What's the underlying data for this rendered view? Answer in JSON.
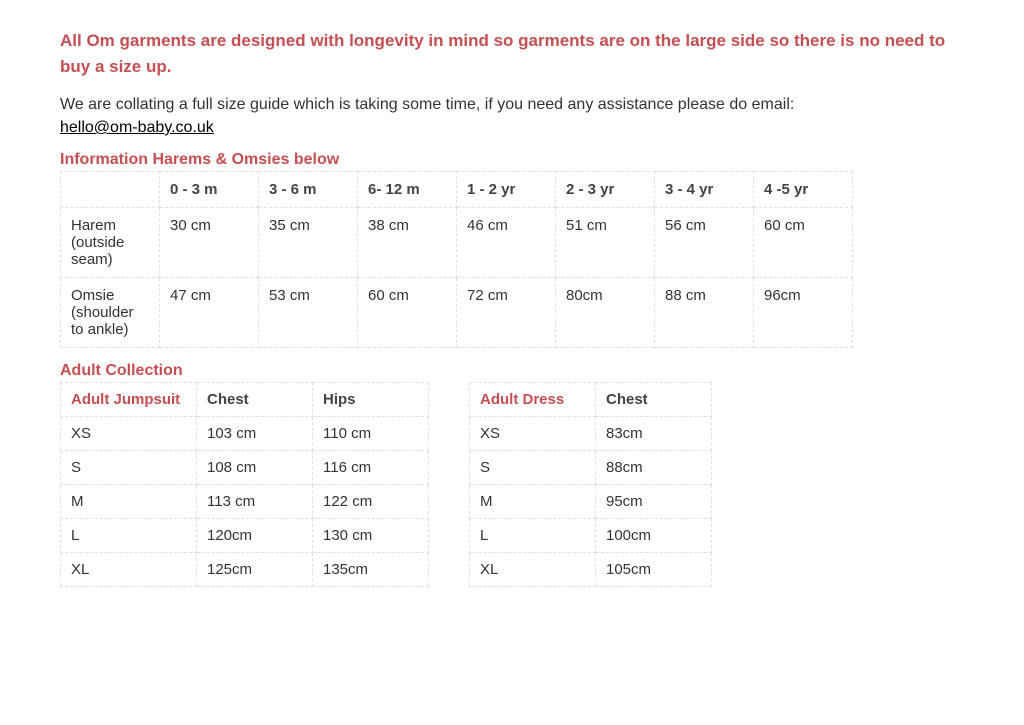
{
  "colors": {
    "accent": "#c54f52",
    "text": "#333333",
    "border": "#e0e0e0",
    "heading": "#444444",
    "background": "#ffffff"
  },
  "intro": "All Om garments are designed with longevity in mind so garments are on the large side so there is no need to buy a size up.",
  "note": "We are collating a full size guide which is taking some time, if you need any assistance please do email:",
  "email": "hello@om-baby.co.uk",
  "section1_title": "Information Harems & Omsies below",
  "kids": {
    "columns": [
      "",
      "0 - 3 m",
      "3  - 6 m",
      "6- 12 m",
      "1 - 2 yr",
      "2 - 3 yr",
      "3 - 4 yr",
      "4 -5 yr"
    ],
    "rows": [
      [
        "Harem (outside seam)",
        "30 cm",
        "35 cm",
        "38 cm",
        "46 cm",
        "51 cm",
        "56 cm",
        "60 cm"
      ],
      [
        "Omsie (shoulder to ankle)",
        "47 cm",
        "53 cm",
        "60 cm",
        "72 cm",
        "80cm",
        "88 cm",
        "96cm"
      ]
    ]
  },
  "section2_title": "Adult Collection",
  "jumpsuit": {
    "columns": [
      "Adult Jumpsuit",
      "Chest",
      "Hips"
    ],
    "rows": [
      [
        "XS",
        "103 cm",
        "110 cm"
      ],
      [
        "S",
        "108 cm",
        "116 cm"
      ],
      [
        "M",
        "113 cm",
        "122 cm"
      ],
      [
        "L",
        "120cm",
        "130 cm"
      ],
      [
        "XL",
        "125cm",
        "135cm"
      ]
    ]
  },
  "dress": {
    "columns": [
      "Adult Dress",
      "Chest"
    ],
    "rows": [
      [
        "XS",
        "83cm"
      ],
      [
        "S",
        "88cm"
      ],
      [
        "M",
        "95cm"
      ],
      [
        "L",
        "100cm"
      ],
      [
        "XL",
        "105cm"
      ]
    ]
  }
}
